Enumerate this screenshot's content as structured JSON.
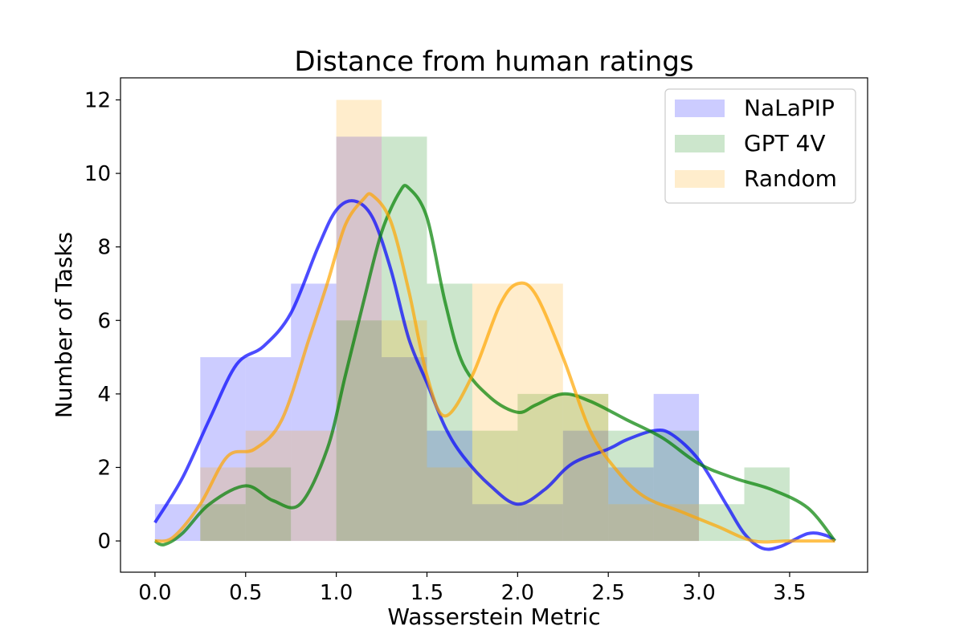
{
  "chart_data": {
    "type": "histogram_with_kde",
    "title": "Distance from human ratings",
    "xlabel": "Wasserstein Metric",
    "ylabel": "Number of Tasks",
    "xlim": [
      -0.19,
      3.93
    ],
    "ylim": [
      -0.85,
      12.6
    ],
    "xticks": [
      0.0,
      0.5,
      1.0,
      1.5,
      2.0,
      2.5,
      3.0,
      3.5
    ],
    "xtick_labels": [
      "0.0",
      "0.5",
      "1.0",
      "1.5",
      "2.0",
      "2.5",
      "3.0",
      "3.5"
    ],
    "yticks": [
      0,
      2,
      4,
      6,
      8,
      10,
      12
    ],
    "ytick_labels": [
      "0",
      "2",
      "4",
      "6",
      "8",
      "10",
      "12"
    ],
    "bin_edges": [
      0.0,
      0.25,
      0.5,
      0.75,
      1.0,
      1.25,
      1.5,
      1.75,
      2.0,
      2.25,
      2.5,
      2.75,
      3.0,
      3.25,
      3.5,
      3.75
    ],
    "legend": {
      "position": "top-right"
    },
    "series": [
      {
        "name": "NaLaPIP",
        "color": "#0000ff",
        "hist_counts": [
          1,
          5,
          5,
          7,
          11,
          5,
          3,
          1,
          1,
          3,
          2,
          4,
          0,
          0,
          0
        ],
        "kde": {
          "x": [
            0.0,
            0.15,
            0.3,
            0.45,
            0.6,
            0.75,
            0.9,
            1.0,
            1.1,
            1.2,
            1.3,
            1.4,
            1.5,
            1.6,
            1.7,
            1.85,
            2.0,
            2.15,
            2.3,
            2.5,
            2.6,
            2.75,
            2.85,
            3.0,
            3.15,
            3.25,
            3.35,
            3.45,
            3.6,
            3.7,
            3.75
          ],
          "y": [
            0.5,
            1.7,
            3.3,
            4.8,
            5.3,
            6.2,
            8.0,
            9.0,
            9.25,
            8.8,
            7.4,
            5.5,
            4.3,
            3.1,
            2.3,
            1.5,
            1.0,
            1.4,
            2.1,
            2.5,
            2.75,
            3.0,
            2.9,
            2.2,
            1.0,
            0.2,
            -0.2,
            -0.15,
            0.2,
            0.15,
            0.0
          ]
        }
      },
      {
        "name": "GPT 4V",
        "color": "#008000",
        "hist_counts": [
          0,
          1,
          2,
          0,
          6,
          11,
          7,
          3,
          4,
          4,
          3,
          3,
          1,
          2,
          0
        ],
        "kde": {
          "x": [
            0.0,
            0.05,
            0.15,
            0.3,
            0.5,
            0.65,
            0.8,
            0.95,
            1.05,
            1.15,
            1.25,
            1.35,
            1.4,
            1.5,
            1.6,
            1.7,
            1.85,
            2.0,
            2.1,
            2.25,
            2.4,
            2.6,
            2.8,
            3.0,
            3.2,
            3.4,
            3.6,
            3.75
          ],
          "y": [
            0.0,
            -0.1,
            0.2,
            1.0,
            1.5,
            1.1,
            1.0,
            2.5,
            4.5,
            6.5,
            8.4,
            9.5,
            9.6,
            8.8,
            6.5,
            4.8,
            3.9,
            3.5,
            3.7,
            4.0,
            3.8,
            3.3,
            2.8,
            2.1,
            1.7,
            1.4,
            0.9,
            0.0
          ]
        }
      },
      {
        "name": "Random",
        "color": "#ffa500",
        "hist_counts": [
          0,
          2,
          3,
          3,
          12,
          6,
          2,
          7,
          7,
          4,
          1,
          1,
          0,
          0,
          0
        ],
        "kde": {
          "x": [
            0.0,
            0.1,
            0.25,
            0.4,
            0.55,
            0.7,
            0.85,
            0.95,
            1.05,
            1.15,
            1.2,
            1.3,
            1.4,
            1.5,
            1.6,
            1.75,
            1.9,
            2.0,
            2.1,
            2.25,
            2.4,
            2.55,
            2.7,
            2.9,
            3.1,
            3.3,
            3.5,
            3.75
          ],
          "y": [
            0.0,
            0.1,
            1.0,
            2.3,
            2.5,
            3.3,
            5.5,
            7.0,
            8.6,
            9.3,
            9.4,
            8.7,
            6.8,
            4.5,
            3.4,
            4.5,
            6.4,
            7.0,
            6.7,
            5.0,
            3.0,
            1.9,
            1.2,
            0.8,
            0.4,
            0.0,
            0.0,
            0.0
          ]
        }
      }
    ]
  }
}
